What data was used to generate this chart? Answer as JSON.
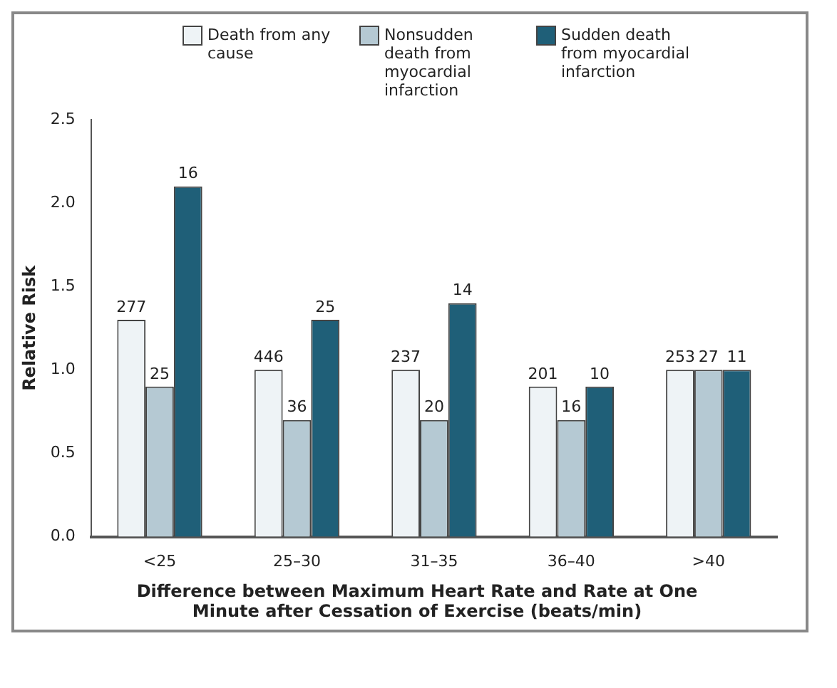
{
  "chart_data": {
    "type": "bar",
    "categories": [
      "<25",
      "25–30",
      "31–35",
      "36–40",
      ">40"
    ],
    "series": [
      {
        "name": "Death from any cause",
        "color": "#eef3f6",
        "values": [
          1.3,
          1.0,
          1.0,
          0.9,
          1.0
        ]
      },
      {
        "name": "Nonsudden death from myocardial infarction",
        "color": "#b5c9d3",
        "values": [
          0.9,
          0.7,
          0.7,
          0.7,
          1.0
        ]
      },
      {
        "name": "Sudden death from myocardial infarction",
        "color": "#1f5f78",
        "values": [
          2.1,
          1.3,
          1.4,
          0.9,
          1.0
        ]
      }
    ],
    "annotations": [
      "277",
      "446",
      "237",
      "201",
      "253",
      "25",
      "36",
      "20",
      "16",
      "27",
      "16",
      "25",
      "14",
      "10",
      "11"
    ],
    "ylabel": "Relative Risk",
    "xlabel": "Difference between Maximum Heart Rate and Rate at One Minute after Cessation of Exercise (beats/min)",
    "ylim": [
      0,
      2.5
    ],
    "yticks": [
      {
        "value": 0,
        "label": "0.0"
      },
      0.5,
      {
        "value": 1,
        "label": "1.0"
      },
      1.5,
      {
        "value": 2,
        "label": "2.0"
      },
      2.5
    ],
    "grid": false,
    "legend": "top"
  }
}
